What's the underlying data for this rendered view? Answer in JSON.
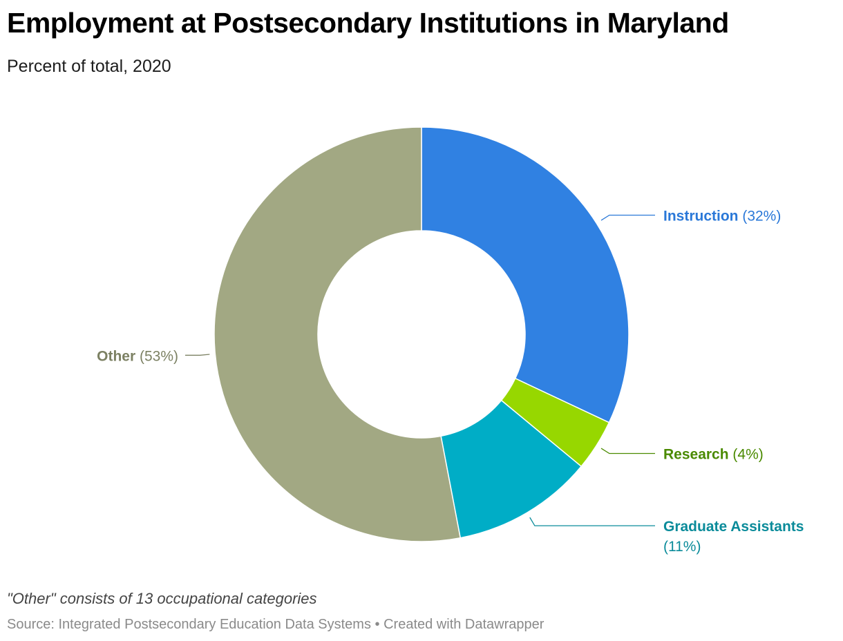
{
  "header": {
    "title": "Employment at Postsecondary Institutions in Maryland",
    "subtitle": "Percent of total, 2020"
  },
  "footer": {
    "note": "\"Other\" consists of 13 occupational categories",
    "source": "Source: Integrated Postsecondary Education Data Systems",
    "separator": "•",
    "credit": "Created with Datawrapper"
  },
  "chart_data": {
    "type": "pie",
    "variant": "donut",
    "title": "Employment at Postsecondary Institutions in Maryland",
    "subtitle": "Percent of total, 2020",
    "unit": "%",
    "slices": [
      {
        "name": "Instruction",
        "value_label": "(32%)",
        "value": 32,
        "color": "#3081e2",
        "label_color": "#2a78d8",
        "label_side": "right"
      },
      {
        "name": "Research",
        "value_label": "(4%)",
        "value": 4,
        "color": "#97d700",
        "label_color": "#4a8a00",
        "label_side": "right"
      },
      {
        "name": "Graduate Assistants",
        "value_label": "(11%)",
        "value": 11,
        "color": "#00adc6",
        "label_color": "#0a8b9a",
        "label_side": "right"
      },
      {
        "name": "Other",
        "value_label": "(53%)",
        "value": 53,
        "color": "#a2a883",
        "label_color": "#7c8163",
        "label_side": "left"
      }
    ]
  }
}
